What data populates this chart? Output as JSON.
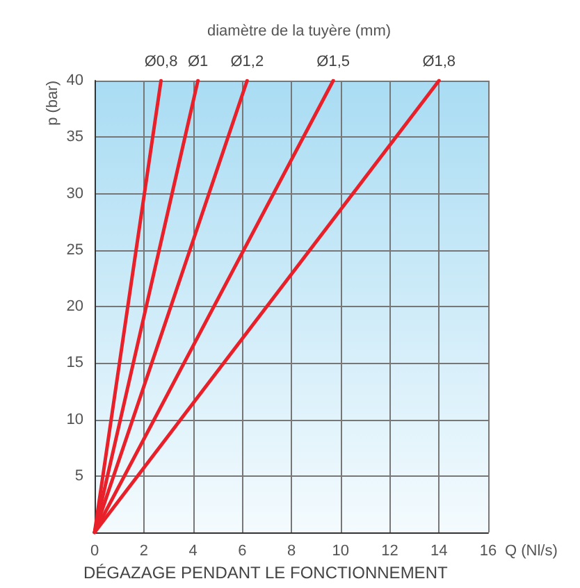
{
  "chart_data": {
    "type": "line",
    "title": "diamètre de la tuyère (mm)",
    "xlabel": "Q (Nl/s)",
    "ylabel": "p (bar)",
    "annotations": [
      "DÉGAZAGE PENDANT LE FONCTIONNEMENT"
    ],
    "series": [
      {
        "name": "Ø0,8",
        "color": "#e8202a",
        "x": [
          0,
          2.7
        ],
        "values": [
          0,
          40
        ]
      },
      {
        "name": "Ø1",
        "color": "#e8202a",
        "x": [
          0,
          4.2
        ],
        "values": [
          0,
          40
        ]
      },
      {
        "name": "Ø1,2",
        "color": "#e8202a",
        "x": [
          0,
          6.2
        ],
        "values": [
          0,
          40
        ]
      },
      {
        "name": "Ø1,5",
        "color": "#e8202a",
        "x": [
          0,
          9.7
        ],
        "values": [
          0,
          40
        ]
      },
      {
        "name": "Ø1,8",
        "color": "#e8202a",
        "x": [
          0,
          14
        ],
        "values": [
          0,
          40
        ]
      }
    ],
    "xlim": [
      0,
      16
    ],
    "xticks": [
      0,
      2,
      4,
      6,
      8,
      10,
      12,
      14,
      16
    ],
    "ylim": [
      0,
      40
    ],
    "yticks": [
      {
        "value": 0,
        "label": null
      },
      5,
      10,
      15,
      20,
      25,
      30,
      35,
      40
    ],
    "grid": true,
    "legend": false
  }
}
